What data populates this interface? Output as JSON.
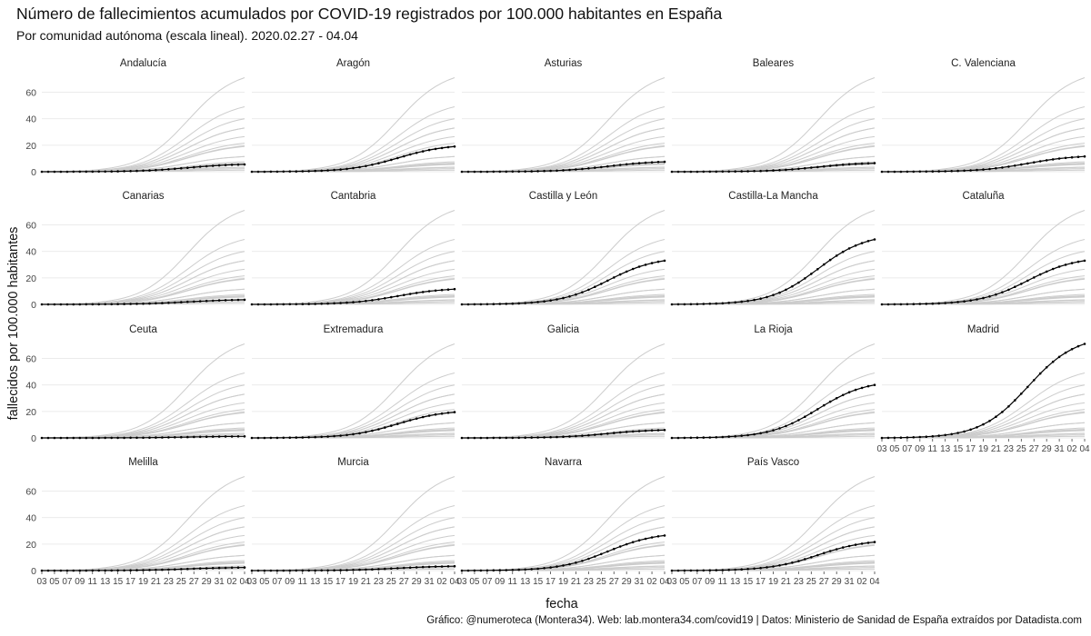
{
  "chart_data": {
    "type": "line",
    "title": "Número de fallecimientos acumulados por COVID-19 registrados por 100.000 habitantes en España",
    "subtitle": "Por comunidad autónoma (escala lineal). 2020.02.27 - 04.04",
    "caption": "Gráfico: @numeroteca (Montera34). Web: lab.montera34.com/covid19 | Datos: Ministerio de Sanidad de España extraídos por Datadista.com",
    "xlabel": "fecha",
    "ylabel": "fallecidos por 100.000 habitantes",
    "ylim": [
      0,
      72
    ],
    "yticks": [
      0,
      20,
      40,
      60
    ],
    "x_start": "2020-03-03",
    "x_ticks": [
      "03",
      "05",
      "07",
      "09",
      "11",
      "13",
      "15",
      "17",
      "19",
      "21",
      "23",
      "25",
      "27",
      "29",
      "31",
      "02",
      "04"
    ],
    "grid": true,
    "background_color": "#cccccc",
    "highlight_color": "#000000",
    "series": [
      {
        "name": "Andalucía",
        "end_value": 5.5
      },
      {
        "name": "Aragón",
        "end_value": 19
      },
      {
        "name": "Asturias",
        "end_value": 7.5
      },
      {
        "name": "Baleares",
        "end_value": 6.5
      },
      {
        "name": "C. Valenciana",
        "end_value": 11.5
      },
      {
        "name": "Canarias",
        "end_value": 3.5
      },
      {
        "name": "Cantabria",
        "end_value": 11.5
      },
      {
        "name": "Castilla y León",
        "end_value": 33
      },
      {
        "name": "Castilla-La Mancha",
        "end_value": 49
      },
      {
        "name": "Cataluña",
        "end_value": 33
      },
      {
        "name": "Ceuta",
        "end_value": 1.2
      },
      {
        "name": "Extremadura",
        "end_value": 19.5
      },
      {
        "name": "Galicia",
        "end_value": 6
      },
      {
        "name": "La Rioja",
        "end_value": 40
      },
      {
        "name": "Madrid",
        "end_value": 71
      },
      {
        "name": "Melilla",
        "end_value": 2.3
      },
      {
        "name": "Murcia",
        "end_value": 3.3
      },
      {
        "name": "Navarra",
        "end_value": 26.5
      },
      {
        "name": "País Vasco",
        "end_value": 21.5
      }
    ]
  }
}
